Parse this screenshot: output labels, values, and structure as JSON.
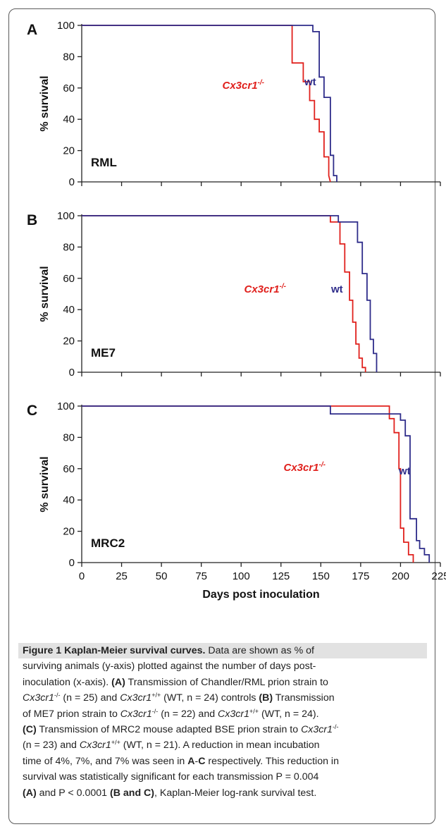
{
  "colors": {
    "ko": "#e0201c",
    "wt": "#2e2c8a",
    "axis": "#222222"
  },
  "chart_data": [
    {
      "type": "line",
      "panel": "A",
      "tag": "RML",
      "ylabel": "% survival",
      "xlabel": "",
      "xlim": [
        0,
        225
      ],
      "ylim": [
        0,
        100
      ],
      "yticks": [
        0,
        20,
        40,
        60,
        80,
        100
      ],
      "series": [
        {
          "name": "Cx3cr1-/-",
          "label_main": "Cx3cr1",
          "label_sup": "-/-",
          "color": "#e0201c",
          "x": [
            0,
            132,
            132,
            139,
            139,
            143,
            143,
            146,
            146,
            149,
            149,
            152,
            152,
            155,
            155,
            156
          ],
          "y": [
            100,
            100,
            76,
            76,
            64,
            64,
            52,
            52,
            40,
            40,
            32,
            32,
            16,
            16,
            4,
            0
          ]
        },
        {
          "name": "wt",
          "label_main": "wt",
          "label_sup": "",
          "color": "#2e2c8a",
          "x": [
            0,
            145,
            145,
            149,
            149,
            152,
            152,
            156,
            156,
            158,
            158,
            160,
            160
          ],
          "y": [
            100,
            100,
            96,
            96,
            67,
            67,
            54,
            54,
            17,
            17,
            4,
            4,
            0
          ]
        }
      ]
    },
    {
      "type": "line",
      "panel": "B",
      "tag": "ME7",
      "ylabel": "% survival",
      "xlabel": "",
      "xlim": [
        0,
        225
      ],
      "ylim": [
        0,
        100
      ],
      "yticks": [
        0,
        20,
        40,
        60,
        80,
        100
      ],
      "series": [
        {
          "name": "Cx3cr1-/-",
          "label_main": "Cx3cr1",
          "label_sup": "-/-",
          "color": "#e0201c",
          "x": [
            0,
            156,
            156,
            162,
            162,
            165,
            165,
            168,
            168,
            170,
            170,
            172,
            172,
            174,
            174,
            176,
            176,
            178,
            178
          ],
          "y": [
            100,
            100,
            96,
            96,
            82,
            82,
            64,
            64,
            46,
            46,
            32,
            32,
            18,
            18,
            9,
            9,
            3,
            3,
            0
          ]
        },
        {
          "name": "wt",
          "label_main": "wt",
          "label_sup": "",
          "color": "#2e2c8a",
          "x": [
            0,
            161,
            161,
            173,
            173,
            176,
            176,
            179,
            179,
            181,
            181,
            183,
            183,
            185,
            185
          ],
          "y": [
            100,
            100,
            96,
            96,
            83,
            83,
            63,
            63,
            46,
            46,
            21,
            21,
            12,
            12,
            0
          ]
        }
      ]
    },
    {
      "type": "line",
      "panel": "C",
      "tag": "MRC2",
      "ylabel": "% survival",
      "xlabel": "Days post inoculation",
      "xlim": [
        0,
        225
      ],
      "ylim": [
        0,
        100
      ],
      "xticks": [
        0,
        25,
        50,
        75,
        100,
        125,
        150,
        175,
        200,
        225
      ],
      "yticks": [
        0,
        20,
        40,
        60,
        80,
        100
      ],
      "series": [
        {
          "name": "Cx3cr1-/-",
          "label_main": "Cx3cr1",
          "label_sup": "-/-",
          "color": "#e0201c",
          "x": [
            0,
            193,
            193,
            196,
            196,
            199,
            199,
            200,
            200,
            202,
            202,
            205,
            205,
            208,
            208
          ],
          "y": [
            100,
            100,
            92,
            92,
            83,
            83,
            60,
            60,
            22,
            22,
            13,
            13,
            5,
            5,
            0
          ]
        },
        {
          "name": "wt",
          "label_main": "wt",
          "label_sup": "",
          "color": "#2e2c8a",
          "x": [
            0,
            156,
            156,
            200,
            200,
            203,
            203,
            206,
            206,
            210,
            210,
            212,
            212,
            215,
            215,
            218,
            218
          ],
          "y": [
            100,
            100,
            95,
            95,
            91,
            91,
            81,
            81,
            28,
            28,
            14,
            14,
            9,
            9,
            5,
            5,
            0
          ]
        }
      ]
    }
  ],
  "caption": {
    "title": "Figure 1 Kaplan-Meier survival curves.",
    "lines": [
      [
        {
          "t": "Figure 1 Kaplan-Meier survival curves.",
          "b": 1
        },
        {
          "t": " Data are shown as % of"
        }
      ],
      [
        {
          "t": "surviving animals (y-axis) plotted against the number of days post-"
        }
      ],
      [
        {
          "t": "inoculation (x-axis). "
        },
        {
          "t": "(A)",
          "b": 1
        },
        {
          "t": " Transmission of Chandler/RML prion strain to"
        }
      ],
      [
        {
          "t": "Cx3cr1",
          "i": 1
        },
        {
          "t": "-/-",
          "sup": 1
        },
        {
          "t": " (n = 25) and "
        },
        {
          "t": "Cx3cr1",
          "i": 1
        },
        {
          "t": "+/+",
          "sup": 1
        },
        {
          "t": " (WT, n = 24) controls "
        },
        {
          "t": "(B)",
          "b": 1
        },
        {
          "t": " Transmission"
        }
      ],
      [
        {
          "t": "of ME7 prion strain to "
        },
        {
          "t": "Cx3cr1",
          "i": 1
        },
        {
          "t": "-/-",
          "sup": 1
        },
        {
          "t": " (n = 22) and "
        },
        {
          "t": "Cx3cr1",
          "i": 1
        },
        {
          "t": "+/+",
          "sup": 1
        },
        {
          "t": " (WT, n = 24)."
        }
      ],
      [
        {
          "t": "(C)",
          "b": 1
        },
        {
          "t": " Transmission of MRC2 mouse adapted BSE prion strain to "
        },
        {
          "t": "Cx3cr1",
          "i": 1
        },
        {
          "t": "-/-",
          "sup": 1
        }
      ],
      [
        {
          "t": "(n = 23) and "
        },
        {
          "t": "Cx3cr1",
          "i": 1
        },
        {
          "t": "+/+",
          "sup": 1
        },
        {
          "t": " (WT, n = 21). A reduction in mean incubation"
        }
      ],
      [
        {
          "t": "time of 4%, 7%, and 7% was seen in "
        },
        {
          "t": "A",
          "b": 1
        },
        {
          "t": "-"
        },
        {
          "t": "C",
          "b": 1
        },
        {
          "t": " respectively. This reduction in"
        }
      ],
      [
        {
          "t": "survival was statistically significant for each transmission P = 0.004"
        }
      ],
      [
        {
          "t": "(A)",
          "b": 1
        },
        {
          "t": " and P < 0.0001 "
        },
        {
          "t": "(B and C)",
          "b": 1
        },
        {
          "t": ", Kaplan-Meier log-rank survival test."
        }
      ]
    ]
  }
}
